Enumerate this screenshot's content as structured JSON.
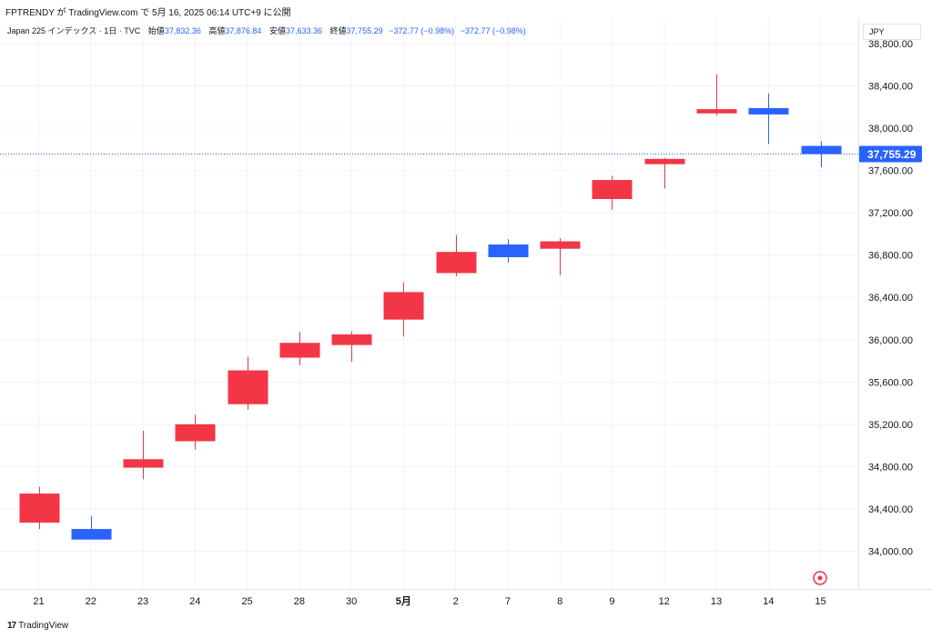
{
  "header": {
    "publisher_line": "FPTRENDY が TradingView.com で 5月 16, 2025 06:14 UTC+9 に公開"
  },
  "legend": {
    "symbol": "Japan 225 インデックス · 1日 · TVC",
    "open_label": "始値",
    "open": "37,832.36",
    "high_label": "高値",
    "high": "37,876.84",
    "low_label": "安値",
    "low": "37,633.36",
    "close_label": "終値",
    "close": "37,755.29",
    "change": "−372.77 (−0.98%)",
    "change2": "−372.77 (−0.98%)"
  },
  "currency": "JPY",
  "price_tag": "37,755.29",
  "footer": {
    "brand_logo": "17",
    "brand": "TradingView"
  },
  "colors": {
    "up": "#f23645",
    "down": "#2962ff",
    "grid": "#f0f3fa",
    "axis_text": "#131722"
  },
  "chart_data": {
    "type": "candlestick",
    "title": "",
    "xlabel": "",
    "ylabel": "",
    "ylim": [
      33750,
      38850
    ],
    "y_ticks": [
      "34,000.00",
      "34,400.00",
      "34,800.00",
      "35,200.00",
      "35,600.00",
      "36,000.00",
      "36,400.00",
      "36,800.00",
      "37,200.00",
      "37,600.00",
      "38,000.00",
      "38,400.00",
      "38,800.00"
    ],
    "y_tick_values": [
      34000,
      34400,
      34800,
      35200,
      35600,
      36000,
      36400,
      36800,
      37200,
      37600,
      38000,
      38400,
      38800
    ],
    "categories": [
      "21",
      "22",
      "23",
      "24",
      "25",
      "28",
      "30",
      "5月",
      "2",
      "7",
      "8",
      "9",
      "12",
      "13",
      "14",
      "15"
    ],
    "grid": true,
    "last_price": 37755.29,
    "candles": [
      {
        "open": 34270,
        "high": 34610,
        "low": 34210,
        "close": 34545
      },
      {
        "open": 34210,
        "high": 34330,
        "low": 34110,
        "close": 34110
      },
      {
        "open": 34790,
        "high": 35140,
        "low": 34680,
        "close": 34870
      },
      {
        "open": 35040,
        "high": 35290,
        "low": 34960,
        "close": 35200
      },
      {
        "open": 35390,
        "high": 35840,
        "low": 35340,
        "close": 35710
      },
      {
        "open": 35830,
        "high": 36075,
        "low": 35760,
        "close": 35970
      },
      {
        "open": 35950,
        "high": 36080,
        "low": 35790,
        "close": 36050
      },
      {
        "open": 36190,
        "high": 36540,
        "low": 36030,
        "close": 36450
      },
      {
        "open": 36630,
        "high": 36990,
        "low": 36600,
        "close": 36830
      },
      {
        "open": 36900,
        "high": 36950,
        "low": 36730,
        "close": 36780
      },
      {
        "open": 36860,
        "high": 36960,
        "low": 36610,
        "close": 36930
      },
      {
        "open": 37330,
        "high": 37550,
        "low": 37230,
        "close": 37510
      },
      {
        "open": 37660,
        "high": 37720,
        "low": 37430,
        "close": 37710
      },
      {
        "open": 38140,
        "high": 38510,
        "low": 38120,
        "close": 38180
      },
      {
        "open": 38190,
        "high": 38330,
        "low": 37850,
        "close": 38130
      },
      {
        "open": 37832.36,
        "high": 37876.84,
        "low": 37633.36,
        "close": 37755.29
      }
    ]
  }
}
